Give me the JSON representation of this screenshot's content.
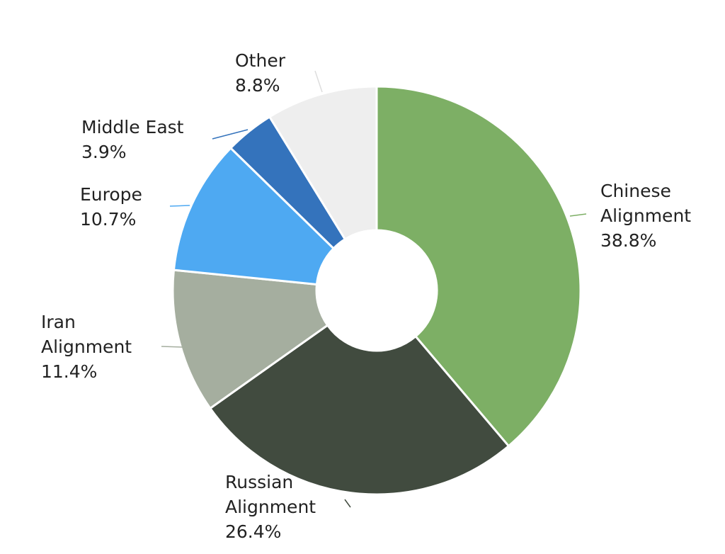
{
  "chart_data": {
    "type": "pie",
    "categories": [
      "Chinese Alignment",
      "Russian Alignment",
      "Iran Alignment",
      "Europe",
      "Middle East",
      "Other"
    ],
    "values": [
      38.8,
      26.4,
      11.4,
      10.7,
      3.9,
      8.8
    ],
    "value_labels": [
      "38.8%",
      "26.4%",
      "11.4%",
      "10.7%",
      "3.9%",
      "8.8%"
    ],
    "colors": [
      "#7daf65",
      "#414b3f",
      "#a5ae9f",
      "#4ea9f2",
      "#3473bc",
      "#eeeeee"
    ]
  }
}
